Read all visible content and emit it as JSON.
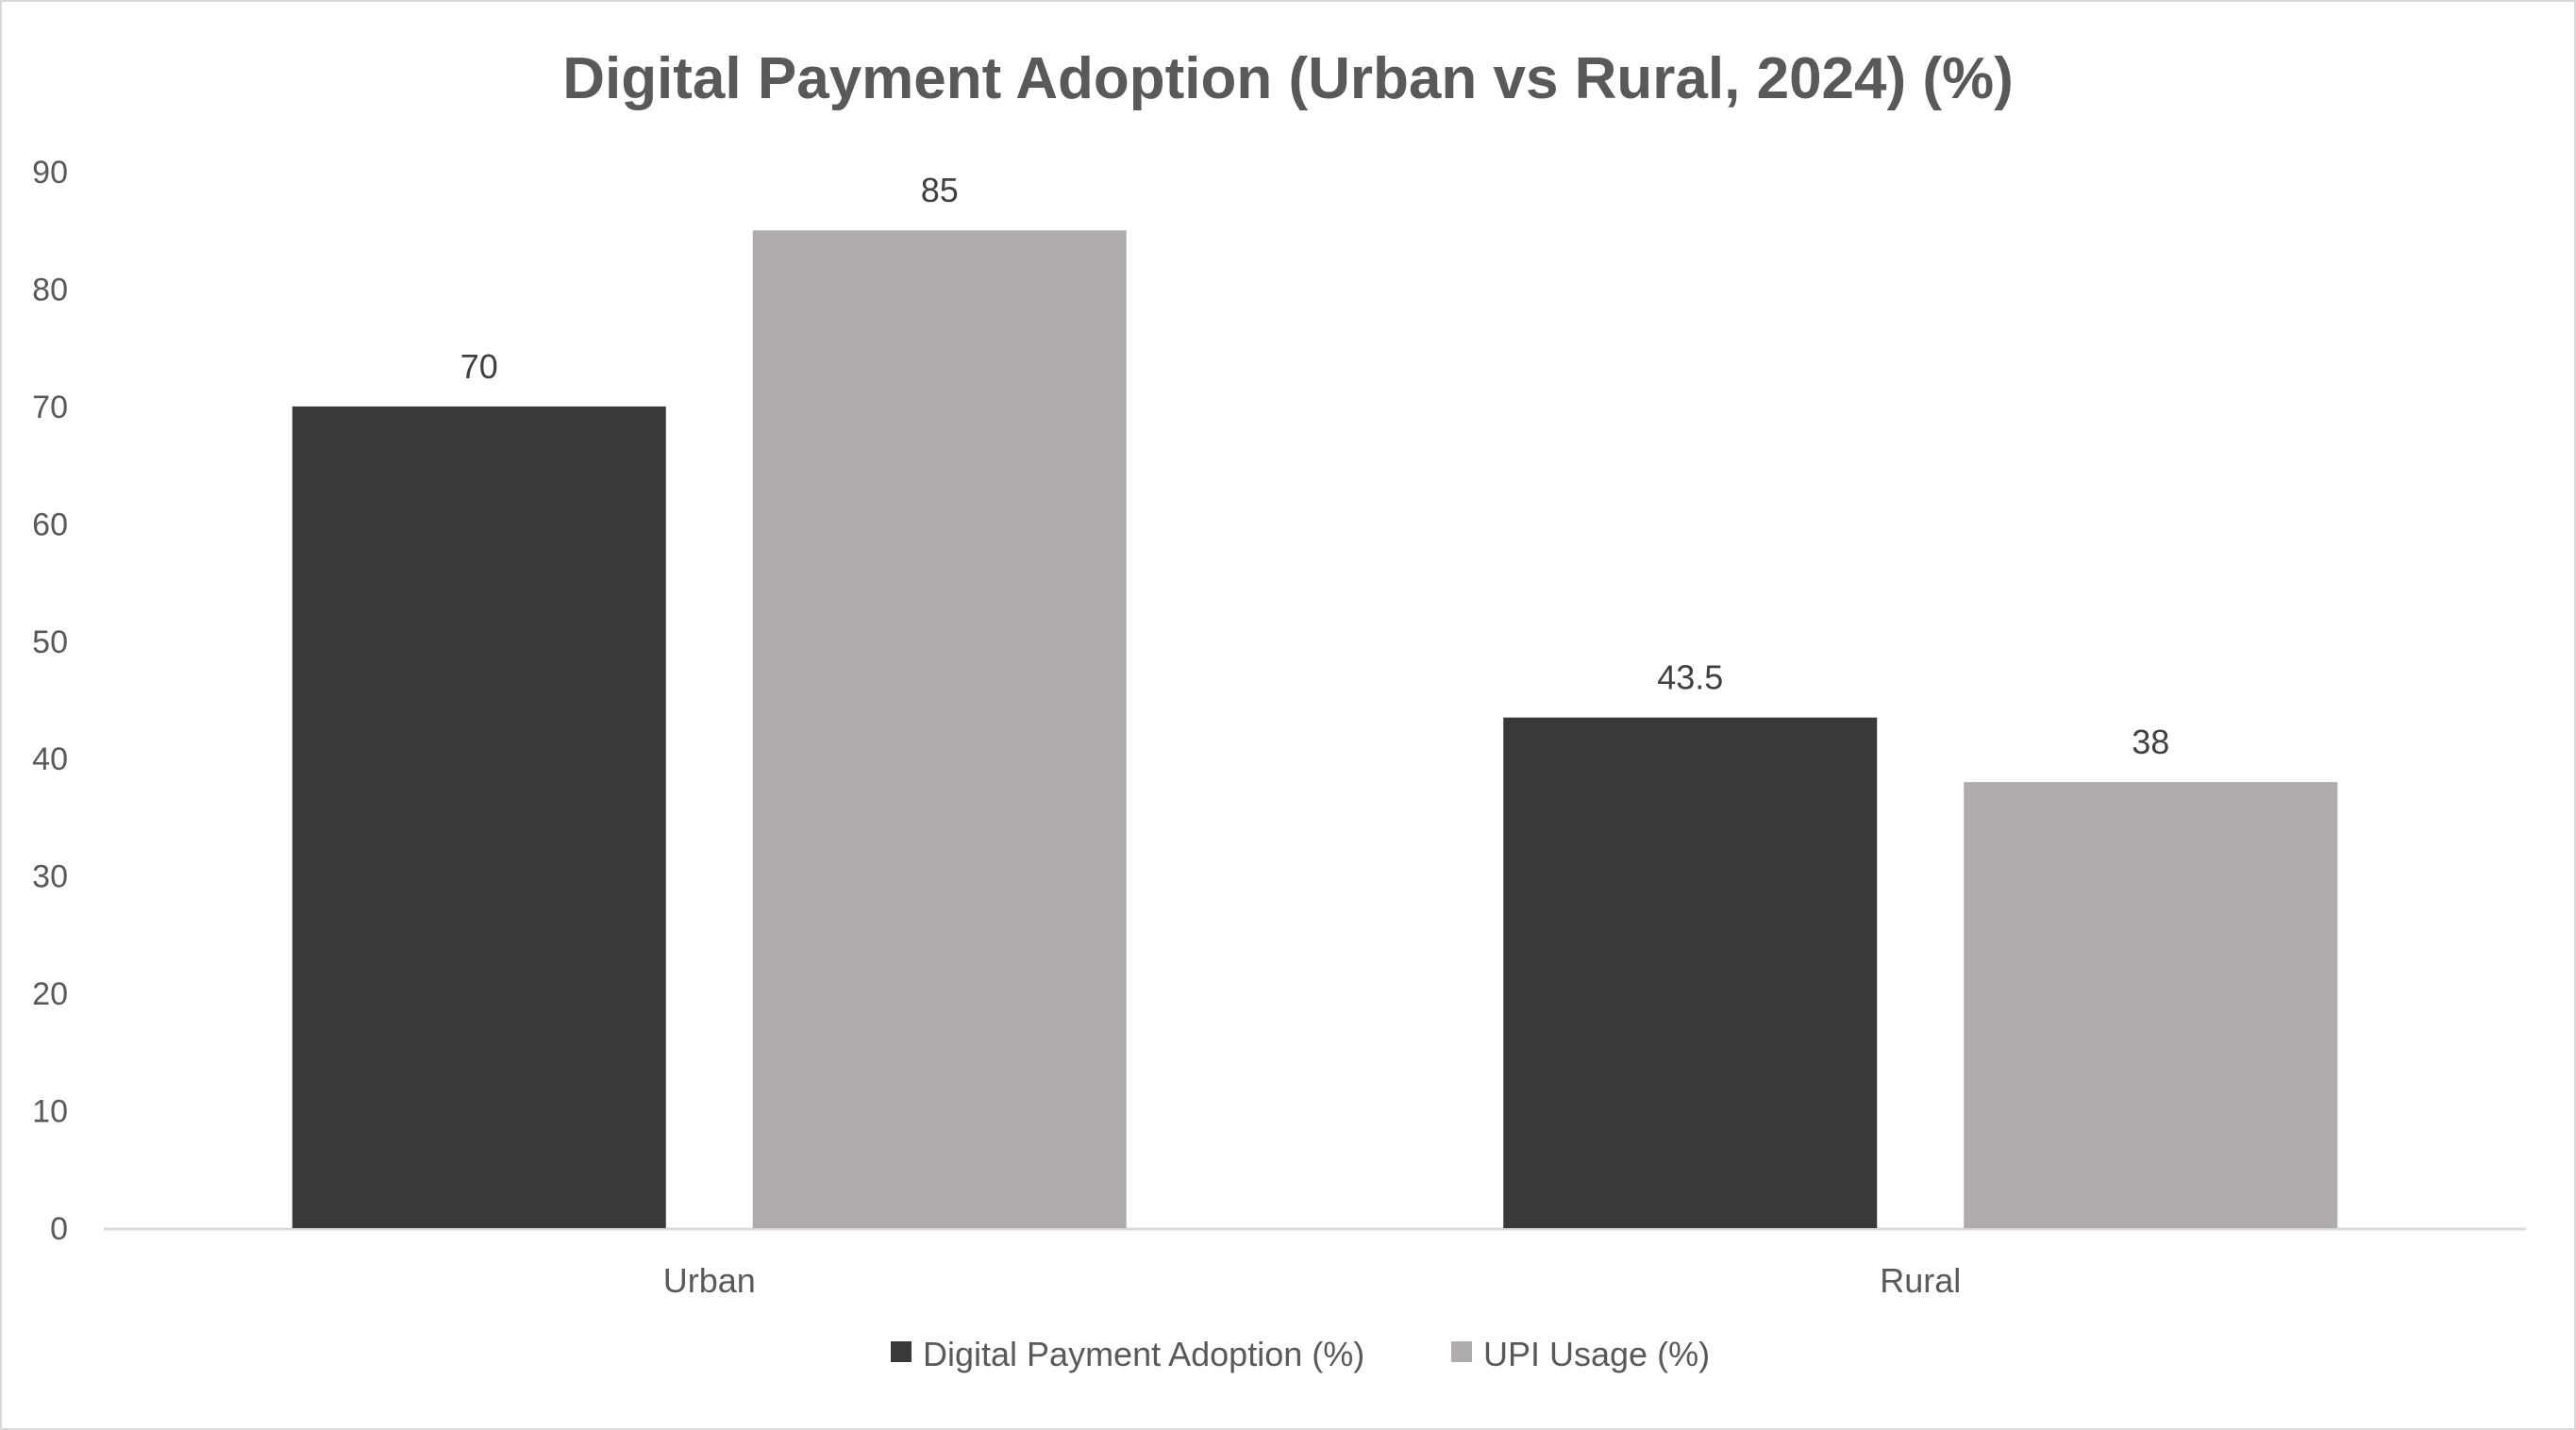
{
  "chart_data": {
    "type": "bar",
    "title": "Digital Payment Adoption (Urban vs Rural, 2024) (%)",
    "xlabel": "",
    "ylabel": "",
    "categories": [
      "Urban",
      "Rural"
    ],
    "series": [
      {
        "name": "Digital Payment Adoption (%)",
        "values": [
          70,
          43.5
        ],
        "color": "#3a3938"
      },
      {
        "name": "UPI Usage (%)",
        "values": [
          85,
          38
        ],
        "color": "#afacab"
      }
    ],
    "ylim": [
      0,
      90
    ],
    "yticks": [
      0,
      10,
      20,
      30,
      40,
      50,
      60,
      70,
      80,
      90
    ],
    "data_labels": true,
    "grid": false,
    "legend": "bottom"
  }
}
